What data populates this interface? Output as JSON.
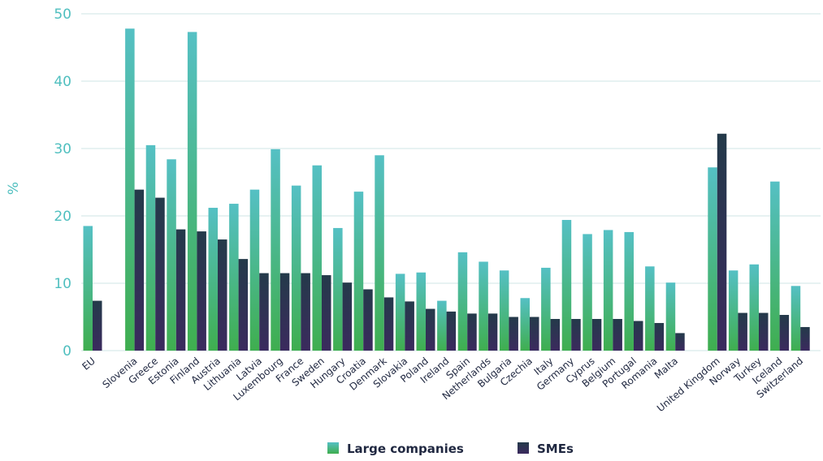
{
  "chart_data": {
    "type": "bar",
    "ylabel": "%",
    "ylim": [
      0,
      50
    ],
    "yticks": [
      0,
      10,
      20,
      30,
      40,
      50
    ],
    "grid": true,
    "legend_position": "bottom-center",
    "categories": [
      "EU",
      "Slovenia",
      "Greece",
      "Estonia",
      "Finland",
      "Austria",
      "Lithuania",
      "Latvia",
      "Luxembourg",
      "France",
      "Sweden",
      "Hungary",
      "Croatia",
      "Denmark",
      "Slovakia",
      "Poland",
      "Ireland",
      "Spain",
      "Netherlands",
      "Bulgaria",
      "Czechia",
      "Italy",
      "Germany",
      "Cyprus",
      "Belgium",
      "Portugal",
      "Romania",
      "Malta",
      "United Kingdom",
      "Norway",
      "Turkey",
      "Iceland",
      "Switzerland"
    ],
    "group_gaps_after": [
      "EU",
      "Malta"
    ],
    "series": [
      {
        "name": "Large companies",
        "colors": {
          "top": "#55c0c4",
          "bottom": "#3fae4f"
        },
        "values": [
          18.5,
          47.8,
          30.5,
          28.4,
          47.3,
          21.2,
          21.8,
          23.9,
          29.9,
          24.5,
          27.5,
          18.2,
          23.6,
          29.0,
          11.4,
          11.6,
          7.4,
          14.6,
          13.2,
          11.9,
          7.8,
          12.3,
          19.4,
          17.3,
          17.9,
          17.6,
          12.5,
          10.1,
          27.2,
          11.9,
          12.8,
          25.1,
          9.6
        ]
      },
      {
        "name": "SMEs",
        "colors": {
          "top": "#243a4a",
          "bottom": "#3b2a5e"
        },
        "values": [
          7.4,
          23.9,
          22.7,
          18.0,
          17.7,
          16.5,
          13.6,
          11.5,
          11.5,
          11.5,
          11.2,
          10.1,
          9.1,
          7.9,
          7.3,
          6.2,
          5.8,
          5.5,
          5.5,
          5.0,
          5.0,
          4.7,
          4.7,
          4.7,
          4.7,
          4.4,
          4.1,
          2.6,
          32.2,
          5.6,
          5.6,
          5.3,
          3.5
        ]
      }
    ]
  }
}
